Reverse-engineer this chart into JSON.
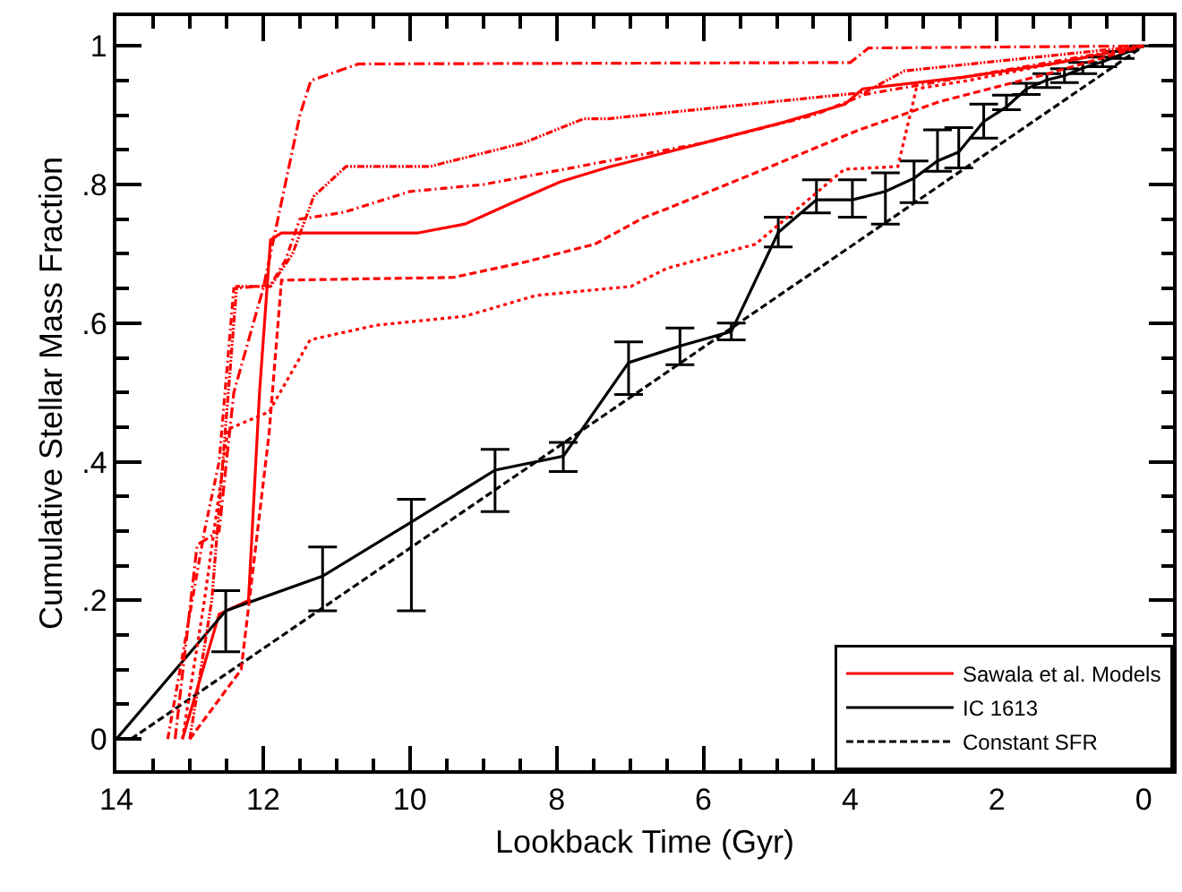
{
  "chart_data": {
    "type": "line",
    "xlabel": "Lookback Time (Gyr)",
    "ylabel": "Cumulative Stellar Mass Fraction",
    "xlim": [
      14,
      -0.4
    ],
    "ylim": [
      -0.045,
      1.043
    ],
    "xticks": [
      14,
      12,
      10,
      8,
      6,
      4,
      2,
      0,
      {
        "value": 13.5,
        "label": null
      },
      {
        "value": 13,
        "label": null
      },
      {
        "value": 12.5,
        "label": null
      },
      {
        "value": 11.5,
        "label": null
      },
      {
        "value": 11,
        "label": null
      },
      {
        "value": 10.5,
        "label": null
      },
      {
        "value": 9.5,
        "label": null
      },
      {
        "value": 9,
        "label": null
      },
      {
        "value": 8.5,
        "label": null
      },
      {
        "value": 7.5,
        "label": null
      },
      {
        "value": 7,
        "label": null
      },
      {
        "value": 6.5,
        "label": null
      },
      {
        "value": 5.5,
        "label": null
      },
      {
        "value": 5,
        "label": null
      },
      {
        "value": 4.5,
        "label": null
      },
      {
        "value": 3.5,
        "label": null
      },
      {
        "value": 3,
        "label": null
      },
      {
        "value": 2.5,
        "label": null
      },
      {
        "value": 1.5,
        "label": null
      },
      {
        "value": 1,
        "label": null
      },
      {
        "value": 0.5,
        "label": null
      }
    ],
    "yticks": [
      0,
      {
        "value": 0.2,
        "label": ".2"
      },
      {
        "value": 0.4,
        "label": ".4"
      },
      {
        "value": 0.6,
        "label": ".6"
      },
      {
        "value": 0.8,
        "label": ".8"
      },
      1,
      {
        "value": 0.05,
        "label": null
      },
      {
        "value": 0.1,
        "label": null
      },
      {
        "value": 0.15,
        "label": null
      },
      {
        "value": 0.25,
        "label": null
      },
      {
        "value": 0.3,
        "label": null
      },
      {
        "value": 0.35,
        "label": null
      },
      {
        "value": 0.45,
        "label": null
      },
      {
        "value": 0.5,
        "label": null
      },
      {
        "value": 0.55,
        "label": null
      },
      {
        "value": 0.65,
        "label": null
      },
      {
        "value": 0.7,
        "label": null
      },
      {
        "value": 0.75,
        "label": null
      },
      {
        "value": 0.85,
        "label": null
      },
      {
        "value": 0.9,
        "label": null
      },
      {
        "value": 0.95,
        "label": null
      }
    ],
    "legend": "bottom right",
    "series": [
      {
        "name": "Sawala et al. Models",
        "color": "#ff0000",
        "line_style": "solid",
        "x": [
          13.1,
          12.6,
          12.2,
          12.05,
          11.9,
          11.75,
          9.9,
          9.25,
          8.6,
          7.95,
          7.3,
          6.0,
          4.9,
          4.07,
          3.83,
          2.45,
          1.2,
          0
        ],
        "values": [
          0,
          0.18,
          0.2,
          0.5,
          0.72,
          0.73,
          0.73,
          0.743,
          0.774,
          0.804,
          0.825,
          0.86,
          0.89,
          0.916,
          0.938,
          0.955,
          0.975,
          1
        ]
      },
      {
        "color": "#ff0000",
        "line_style": "longdashdot",
        "x": [
          13.2,
          12.9,
          12.6,
          12.4,
          12.0,
          11.7,
          11.5,
          11.35,
          10.7,
          4.0,
          3.75,
          0
        ],
        "values": [
          0,
          0.28,
          0.3,
          0.5,
          0.65,
          0.8,
          0.9,
          0.95,
          0.974,
          0.976,
          0.997,
          1
        ]
      },
      {
        "color": "#ff0000",
        "line_style": "dashdotdot",
        "x": [
          13.0,
          12.7,
          12.36,
          11.9,
          11.6,
          11.31,
          10.87,
          9.73,
          8.45,
          7.63,
          7.3,
          3.8,
          3.26,
          0
        ],
        "values": [
          0,
          0.2,
          0.653,
          0.653,
          0.7,
          0.783,
          0.826,
          0.826,
          0.86,
          0.895,
          0.895,
          0.933,
          0.964,
          1
        ]
      },
      {
        "color": "#ff0000",
        "line_style": "dashed",
        "x": [
          13.0,
          12.3,
          11.92,
          11.75,
          9.41,
          8.44,
          7.48,
          6.82,
          6.5,
          5.29,
          3.9,
          2.77,
          1.3,
          0
        ],
        "values": [
          0,
          0.1,
          0.44,
          0.662,
          0.666,
          0.688,
          0.714,
          0.752,
          0.765,
          0.817,
          0.878,
          0.92,
          0.96,
          1
        ]
      },
      {
        "color": "#ff0000",
        "line_style": "dotted",
        "x": [
          13.1,
          12.8,
          12.48,
          11.92,
          11.36,
          10.46,
          9.25,
          8.28,
          6.99,
          6.5,
          5.29,
          4.08,
          3.35,
          3.1,
          2.4,
          0
        ],
        "values": [
          0,
          0.2,
          0.447,
          0.472,
          0.576,
          0.597,
          0.61,
          0.64,
          0.653,
          0.679,
          0.714,
          0.822,
          0.826,
          0.938,
          0.95,
          1
        ]
      },
      {
        "color": "#ff0000",
        "line_style": "dashdot",
        "x": [
          13.3,
          12.8,
          12.6,
          12.4,
          11.9,
          11.7,
          11.5,
          10.9,
          10.0,
          9.0,
          7.5,
          6.0,
          4.5,
          3.8,
          0
        ],
        "values": [
          0,
          0.3,
          0.4,
          0.65,
          0.655,
          0.69,
          0.75,
          0.76,
          0.79,
          0.8,
          0.83,
          0.86,
          0.9,
          0.93,
          1
        ]
      },
      {
        "name": "IC 1613",
        "color": "#000000",
        "line_style": "solid",
        "x": [
          14,
          12.51,
          11.19,
          9.98,
          8.84,
          7.91,
          7.02,
          6.32,
          5.62,
          4.98,
          4.46,
          3.97,
          3.52,
          3.13,
          2.81,
          2.52,
          2.18,
          1.87,
          1.6,
          1.32,
          1.08,
          0.83,
          0.56,
          0.32,
          0
        ],
        "values": [
          0,
          0.185,
          0.235,
          0.313,
          0.388,
          0.408,
          0.543,
          0.567,
          0.588,
          0.731,
          0.778,
          0.778,
          0.79,
          0.809,
          0.834,
          0.847,
          0.891,
          0.912,
          0.938,
          0.951,
          0.957,
          0.968,
          0.977,
          0.987,
          1
        ],
        "errors": [
          null,
          [
            0.126,
            0.214
          ],
          [
            0.185,
            0.277
          ],
          [
            0.185,
            0.346
          ],
          [
            0.328,
            0.418
          ],
          [
            0.386,
            0.428
          ],
          [
            0.497,
            0.573
          ],
          [
            0.54,
            0.593
          ],
          [
            0.576,
            0.6
          ],
          [
            0.71,
            0.753
          ],
          [
            0.759,
            0.807
          ],
          [
            0.753,
            0.807
          ],
          [
            0.743,
            0.817
          ],
          [
            0.774,
            0.834
          ],
          [
            0.819,
            0.879
          ],
          [
            0.824,
            0.882
          ],
          [
            0.867,
            0.916
          ],
          [
            0.908,
            0.929
          ],
          [
            0.93,
            0.946
          ],
          [
            0.94,
            0.96
          ],
          [
            0.947,
            0.967
          ],
          [
            0.96,
            0.976
          ],
          [
            0.97,
            0.984
          ],
          [
            0.982,
            0.992
          ],
          null
        ]
      },
      {
        "name": "Constant SFR",
        "color": "#000000",
        "line_style": "dashed",
        "x": [
          13.8,
          0
        ],
        "values": [
          0,
          1
        ]
      }
    ]
  }
}
